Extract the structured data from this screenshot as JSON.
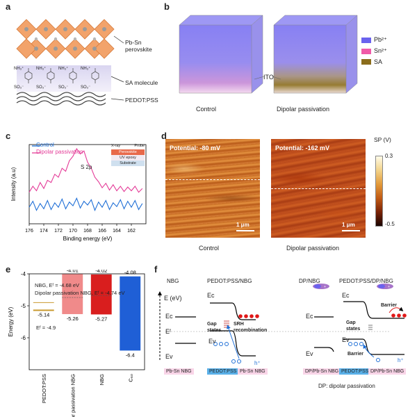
{
  "panels": {
    "a": {
      "letter": "a",
      "labels": [
        "Pb-Sn perovskite",
        "SA molecule",
        "PEDOT:PSS"
      ],
      "ion_top": "NH₃⁺",
      "ion_bottom": "SO₃⁻"
    },
    "b": {
      "letter": "b",
      "captions": [
        "Control",
        "Dipolar passivation"
      ],
      "middle_label": "ITO",
      "legend": [
        {
          "name": "Pb²⁺",
          "color": "#6a62ee"
        },
        {
          "name": "Sn²⁺",
          "color": "#f05aa8"
        },
        {
          "name": "SA",
          "color": "#8b6d1c"
        }
      ]
    },
    "c": {
      "letter": "c",
      "legend": [
        "Control",
        "Dipolar passivation"
      ],
      "annotation": "S 2p",
      "inset": {
        "xray": "X-ray",
        "probe": "Probe",
        "layers": [
          "Perovskite",
          "UV epoxy",
          "Substrate"
        ]
      }
    },
    "d": {
      "letter": "d",
      "potential_left": "Potential: -80 mV",
      "potential_right": "Potential: -162 mV",
      "scalebar": "1 μm",
      "colorbar_title": "SP (V)",
      "colorbar_max": "0.3",
      "colorbar_min": "-0.5",
      "captions": [
        "Control",
        "Dipolar passivation"
      ]
    },
    "e": {
      "letter": "e",
      "notes": [
        "NBG, Eᶠ = -4.68 eV",
        "Dipolar passivation NBG, Eᶠ = -4.74 eV"
      ],
      "ef_label": "Eᶠ = -4.9",
      "ef_value": "-5.14"
    },
    "f": {
      "letter": "f",
      "headers": [
        "NBG",
        "PEDOT:PSS/NBG",
        "DP/NBG",
        "PEDOT:PSS/DP/NBG"
      ],
      "energy_axis": "E (eV)",
      "levels": [
        "Eᴄ",
        "Eᶠ",
        "Eᴠ"
      ],
      "texts": [
        "Gap states",
        "SRH recombination",
        "Barrier",
        "Gap states",
        "Barrier",
        "h⁺",
        "h⁺"
      ],
      "boxes": [
        "Pb-Sn NBG",
        "PEDOT:PSS",
        "Pb-Sn NBG",
        "DP/Pb-Sn NBG",
        "PEDOT:PSS",
        "DP/Pb-Sn NBG"
      ],
      "footnote": "DP: dipolar passivation"
    }
  },
  "chart_data": [
    {
      "type": "line",
      "title": "",
      "xlabel": "Binding energy (eV)",
      "ylabel": "Intensity (a.u)",
      "xlim": [
        176,
        160
      ],
      "xticks": [
        176,
        174,
        172,
        170,
        168,
        166,
        164,
        162
      ],
      "x_reversed": true,
      "series": [
        {
          "name": "Control",
          "color": "#1f6fd6",
          "x": [
            176,
            175.5,
            175,
            174.5,
            174,
            173.5,
            173,
            172.5,
            172,
            171.5,
            171,
            170.5,
            170,
            169.5,
            169,
            168.5,
            168,
            167.5,
            167,
            166.5,
            166,
            165.5,
            165,
            164.5,
            164,
            163.5,
            163,
            162.5,
            162,
            161.5,
            161,
            160.5
          ],
          "y": [
            0.22,
            0.3,
            0.18,
            0.27,
            0.2,
            0.31,
            0.19,
            0.28,
            0.22,
            0.33,
            0.2,
            0.29,
            0.24,
            0.34,
            0.21,
            0.3,
            0.25,
            0.32,
            0.18,
            0.29,
            0.22,
            0.31,
            0.19,
            0.28,
            0.23,
            0.32,
            0.2,
            0.3,
            0.22,
            0.31,
            0.19,
            0.27
          ]
        },
        {
          "name": "Dipolar passivation",
          "color": "#e43c98",
          "x": [
            176,
            175.5,
            175,
            174.5,
            174,
            173.5,
            173,
            172.5,
            172,
            171.5,
            171,
            170.5,
            170,
            169.5,
            169,
            168.5,
            168,
            167.5,
            167,
            166.5,
            166,
            165.5,
            165,
            164.5,
            164,
            163.5,
            163,
            162.5,
            162,
            161.5,
            161,
            160.5
          ],
          "y": [
            0.42,
            0.5,
            0.44,
            0.55,
            0.47,
            0.58,
            0.55,
            0.66,
            0.62,
            0.74,
            0.7,
            0.84,
            0.9,
            1.0,
            0.93,
            0.97,
            0.82,
            0.74,
            0.62,
            0.56,
            0.48,
            0.54,
            0.45,
            0.52,
            0.44,
            0.5,
            0.43,
            0.49,
            0.44,
            0.5,
            0.42,
            0.47
          ]
        }
      ]
    },
    {
      "type": "bar",
      "title": "",
      "ylabel": "Energy (eV)",
      "ylim": [
        -7,
        -4
      ],
      "yticks": [
        -4,
        -5,
        -6
      ],
      "categories": [
        "PEDOT:PSS",
        "Dipolar passivation NBG",
        "NBG",
        "C₆₀"
      ],
      "bars": [
        {
          "top": -4.9,
          "bottom": -5.14,
          "color": "#c99a2e",
          "top_label": "",
          "bottom_label": "-5.14"
        },
        {
          "top": -4.01,
          "bottom": -5.26,
          "color": "#f08a8a",
          "top_label": "-4.01",
          "bottom_label": "-5.26"
        },
        {
          "top": -4.02,
          "bottom": -5.27,
          "color": "#d91e1e",
          "top_label": "-4.02",
          "bottom_label": "-5.27"
        },
        {
          "top": -4.08,
          "bottom": -6.4,
          "color": "#1f5fd6",
          "top_label": "-4.08",
          "bottom_label": "-6.4"
        }
      ]
    }
  ]
}
